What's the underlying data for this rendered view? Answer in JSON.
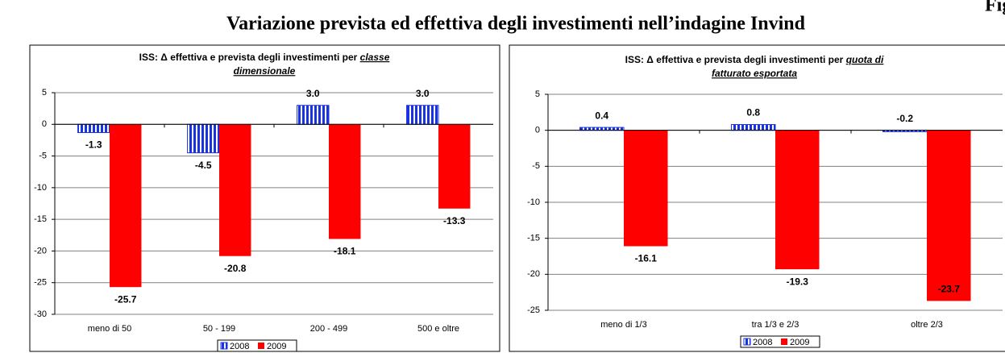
{
  "header": {
    "title": "Variazione prevista ed effettiva degli investimenti nell’indagine Invind",
    "corner": "Fig"
  },
  "chart_data": [
    {
      "type": "bar",
      "title": "ISS:  Δ effettiva e prevista degli investimenti per",
      "title_emphasis": [
        "classe",
        "dimensionale"
      ],
      "categories": [
        "meno di 50",
        "50 - 199",
        "200 - 499",
        "500 e oltre"
      ],
      "series": [
        {
          "name": "2008",
          "color": "#1a33e0",
          "pattern": "vertical-stripes",
          "values": [
            -1.3,
            -4.5,
            3.0,
            3.0
          ],
          "value_labels": [
            "-1.3",
            "-4.5",
            "3.0",
            "3.0"
          ]
        },
        {
          "name": "2009",
          "color": "#ff0000",
          "values": [
            -25.7,
            -20.8,
            -18.1,
            -13.3
          ],
          "value_labels": [
            "-25.7",
            "-20.8",
            "-18.1",
            "-13.3"
          ]
        }
      ],
      "ylim": [
        -30,
        5
      ],
      "yticks": [
        -30,
        -25,
        -20,
        -15,
        -10,
        -5,
        0,
        5
      ],
      "grid": true,
      "legend": "bottom"
    },
    {
      "type": "bar",
      "title": "ISS:  Δ effettiva e prevista degli investimenti per",
      "title_emphasis": [
        "quota di",
        "fatturato esportata"
      ],
      "categories": [
        "meno di 1/3",
        "tra 1/3 e 2/3",
        "oltre 2/3"
      ],
      "series": [
        {
          "name": "2008",
          "color": "#1a33e0",
          "pattern": "vertical-stripes",
          "values": [
            0.4,
            0.8,
            -0.2
          ],
          "value_labels": [
            "0.4",
            "0.8",
            "-0.2"
          ]
        },
        {
          "name": "2009",
          "color": "#ff0000",
          "values": [
            -16.1,
            -19.3,
            -23.7
          ],
          "value_labels": [
            "-16.1",
            "-19.3",
            "-23.7"
          ]
        }
      ],
      "ylim": [
        -25,
        5
      ],
      "yticks": [
        -25,
        -20,
        -15,
        -10,
        -5,
        0,
        5
      ],
      "grid": true,
      "legend": "bottom"
    }
  ]
}
